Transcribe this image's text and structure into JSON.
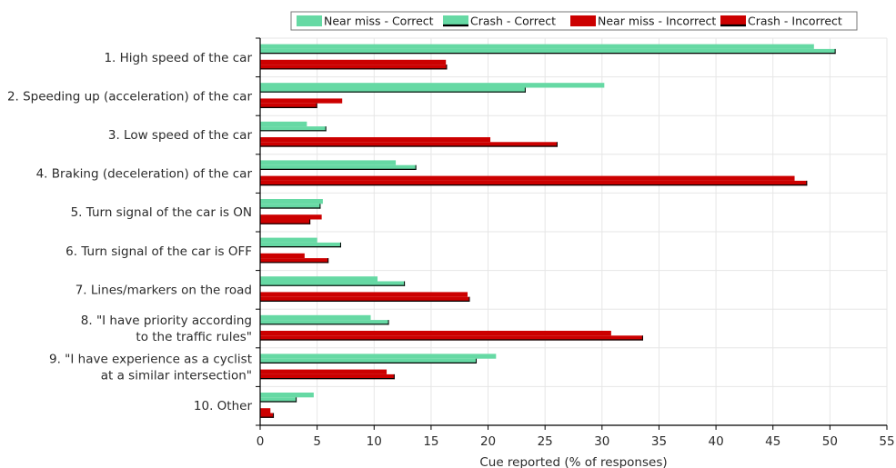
{
  "chart_data": {
    "type": "bar",
    "orientation": "horizontal",
    "xlabel": "Cue reported (% of responses)",
    "ylabel": "",
    "xlim": [
      0,
      55
    ],
    "xticks": [
      0,
      5,
      10,
      15,
      20,
      25,
      30,
      35,
      40,
      45,
      50,
      55
    ],
    "grid": true,
    "legend_position": "top",
    "categories": [
      [
        "1. High speed of the car"
      ],
      [
        "2. Speeding up (acceleration) of the car"
      ],
      [
        "3. Low speed of the car"
      ],
      [
        "4. Braking (deceleration) of the car"
      ],
      [
        "5. Turn signal of the car is ON"
      ],
      [
        "6. Turn signal of the car is OFF"
      ],
      [
        "7. Lines/markers on the road"
      ],
      [
        "8. \"I have priority according",
        "to the traffic rules\""
      ],
      [
        "9. \"I have experience as a cyclist",
        "at a similar intersection\""
      ],
      [
        "10. Other"
      ]
    ],
    "series": [
      {
        "name": "Near miss - Correct",
        "color": "#66d9a4",
        "outline": "none",
        "values": [
          48.6,
          30.2,
          4.1,
          11.9,
          5.5,
          5.0,
          10.3,
          9.7,
          20.7,
          4.7
        ]
      },
      {
        "name": "Crash - Correct",
        "color": "#66d9a4",
        "outline": "#000000",
        "values": [
          50.5,
          23.3,
          5.8,
          13.7,
          5.3,
          7.1,
          12.7,
          11.3,
          19.0,
          3.2
        ]
      },
      {
        "name": "Near miss - Incorrect",
        "color": "#cc0000",
        "outline": "none",
        "values": [
          16.3,
          7.2,
          20.2,
          46.9,
          5.4,
          3.9,
          18.2,
          30.8,
          11.1,
          0.9
        ]
      },
      {
        "name": "Crash - Incorrect",
        "color": "#cc0000",
        "outline": "#000000",
        "values": [
          16.4,
          5.0,
          26.1,
          48.0,
          4.4,
          6.0,
          18.4,
          33.6,
          11.8,
          1.2
        ]
      }
    ]
  }
}
